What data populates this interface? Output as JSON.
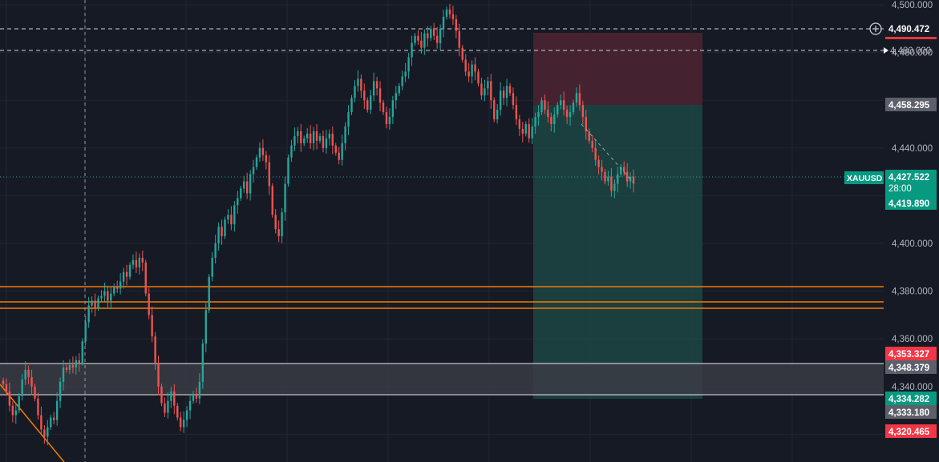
{
  "chart_data": {
    "type": "candlestick",
    "symbol": "XAUUSD",
    "y_axis": {
      "range": [
        4314,
        4503
      ],
      "ticks": [
        4500,
        4480,
        4440,
        4400,
        4380,
        4360,
        4340
      ],
      "tick_labels": [
        "4,500.000",
        "4,480.000",
        "4,440.000",
        "4,400.000",
        "4,380.000",
        "4,360.000",
        "4,340.000"
      ]
    },
    "grid": true,
    "close_series": [
      4341,
      4338,
      4332,
      4328,
      4330,
      4336,
      4343,
      4347,
      4344,
      4340,
      4335,
      4328,
      4322,
      4319,
      4323,
      4327,
      4326,
      4334,
      4342,
      4348,
      4347,
      4349,
      4348,
      4351,
      4350,
      4359,
      4367,
      4374,
      4376,
      4373,
      4377,
      4378,
      4380,
      4376,
      4379,
      4382,
      4381,
      4384,
      4388,
      4386,
      4391,
      4393,
      4390,
      4394,
      4392,
      4379,
      4370,
      4361,
      4350,
      4340,
      4333,
      4329,
      4334,
      4338,
      4332,
      4327,
      4323,
      4326,
      4330,
      4334,
      4337,
      4335,
      4342,
      4358,
      4372,
      4386,
      4394,
      4400,
      4407,
      4403,
      4410,
      4412,
      4408,
      4416,
      4419,
      4423,
      4426,
      4421,
      4429,
      4432,
      4436,
      4440,
      4437,
      4434,
      4424,
      4412,
      4406,
      4403,
      4413,
      4425,
      4436,
      4441,
      4445,
      4447,
      4442,
      4444,
      4446,
      4442,
      4447,
      4443,
      4445,
      4440,
      4444,
      4446,
      4441,
      4438,
      4435,
      4442,
      4449,
      4455,
      4461,
      4466,
      4469,
      4464,
      4460,
      4456,
      4462,
      4468,
      4465,
      4459,
      4455,
      4450,
      4453,
      4460,
      4463,
      4466,
      4470,
      4472,
      4478,
      4484,
      4487,
      4485,
      4482,
      4488,
      4486,
      4490,
      4487,
      4484,
      4490,
      4495,
      4498,
      4496,
      4494,
      4489,
      4482,
      4477,
      4472,
      4470,
      4475,
      4472,
      4467,
      4462,
      4465,
      4468,
      4460,
      4452,
      4456,
      4464,
      4461,
      4466,
      4463,
      4458,
      4452,
      4448,
      4446,
      4450,
      4444,
      4449,
      4453,
      4455,
      4460,
      4456,
      4453,
      4450,
      4454,
      4458,
      4460,
      4456,
      4453,
      4455,
      4459,
      4463,
      4458,
      4453,
      4447,
      4443,
      4440,
      4435,
      4432,
      4430,
      4426,
      4428,
      4422,
      4425,
      4429,
      4432,
      4430,
      4426,
      4428,
      4425
    ],
    "levels": {
      "current": {
        "label": "4,427.522",
        "countdown": "28:00"
      },
      "bid": "4,419.890",
      "dashed_top": "4,490.472",
      "dashed_480": "4,480.000",
      "position_top": "4,458.295",
      "zone_top": "4,353.327",
      "zone_mid": "4,348.379",
      "zone_low": "4,334.282",
      "zone_bottom": "4,333.180",
      "stop_low": "4,320.465"
    },
    "colors": {
      "up": "#26a69a",
      "down": "#ef5350",
      "background": "#161a25",
      "orange_line": "#f57c00",
      "stop_zone": "#4a2330",
      "target_zone": "#1d4a45"
    }
  }
}
